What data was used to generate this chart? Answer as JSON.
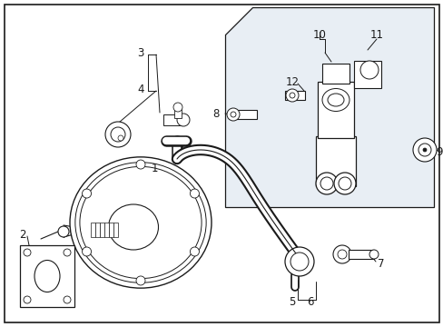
{
  "background_color": "#ffffff",
  "fig_width": 4.89,
  "fig_height": 3.6,
  "dpi": 100,
  "shaded_color": "#e8eef4",
  "line_color": "#1a1a1a",
  "border_lw": 0.8
}
